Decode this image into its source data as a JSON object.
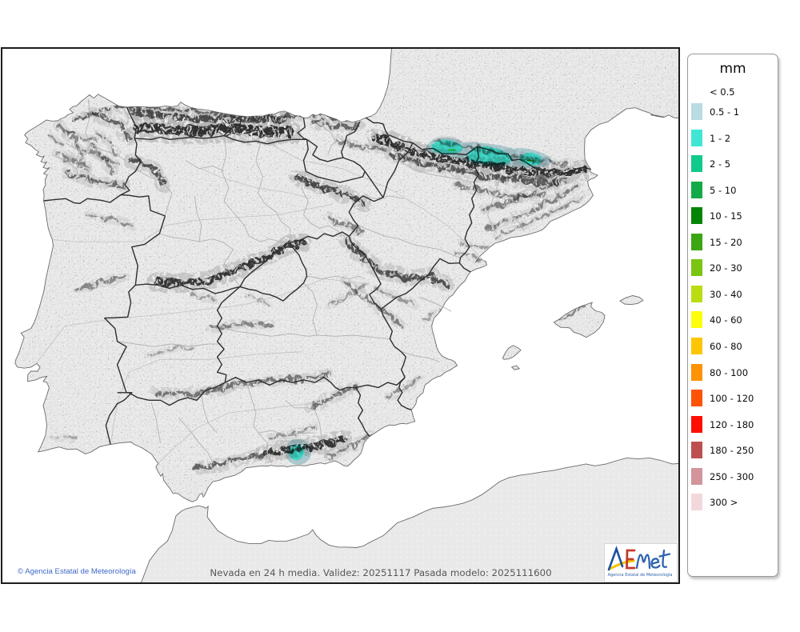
{
  "legend": {
    "unit_label": "mm",
    "no_swatch_label": "< 0.5",
    "entries": [
      {
        "label": "0.5 - 1",
        "color": "#b9dbe2"
      },
      {
        "label": "1 - 2",
        "color": "#3fe6d4"
      },
      {
        "label": "2 - 5",
        "color": "#12c98c"
      },
      {
        "label": "5 - 10",
        "color": "#14aa47"
      },
      {
        "label": "10 - 15",
        "color": "#068406"
      },
      {
        "label": "15 - 20",
        "color": "#3ba512"
      },
      {
        "label": "20 - 30",
        "color": "#79c511"
      },
      {
        "label": "30 - 40",
        "color": "#badd12"
      },
      {
        "label": "40 - 60",
        "color": "#fdfd0d"
      },
      {
        "label": "60 - 80",
        "color": "#fdc505"
      },
      {
        "label": "80 - 100",
        "color": "#fd9305"
      },
      {
        "label": "100 - 120",
        "color": "#fd5305"
      },
      {
        "label": "120 - 180",
        "color": "#fd0e05"
      },
      {
        "label": "180 - 250",
        "color": "#bd4f53"
      },
      {
        "label": "250 - 300",
        "color": "#d3959c"
      },
      {
        "label": "300 >",
        "color": "#f3d8db"
      }
    ]
  },
  "caption": "Nevada en 24 h media. Validez: 20251117 Pasada modelo: 2025111600",
  "copyright": "© Agencia Estatal de Meteorología",
  "logo": {
    "brand": "AEMet",
    "subtitle": "Agencia Estatal de Meteorología"
  },
  "map": {
    "sea_color": "#ffffff",
    "land_color": "#e9e9e9",
    "snow_light_color": "#b9dbe2",
    "snow_cyan_color": "#3fe6d4"
  }
}
